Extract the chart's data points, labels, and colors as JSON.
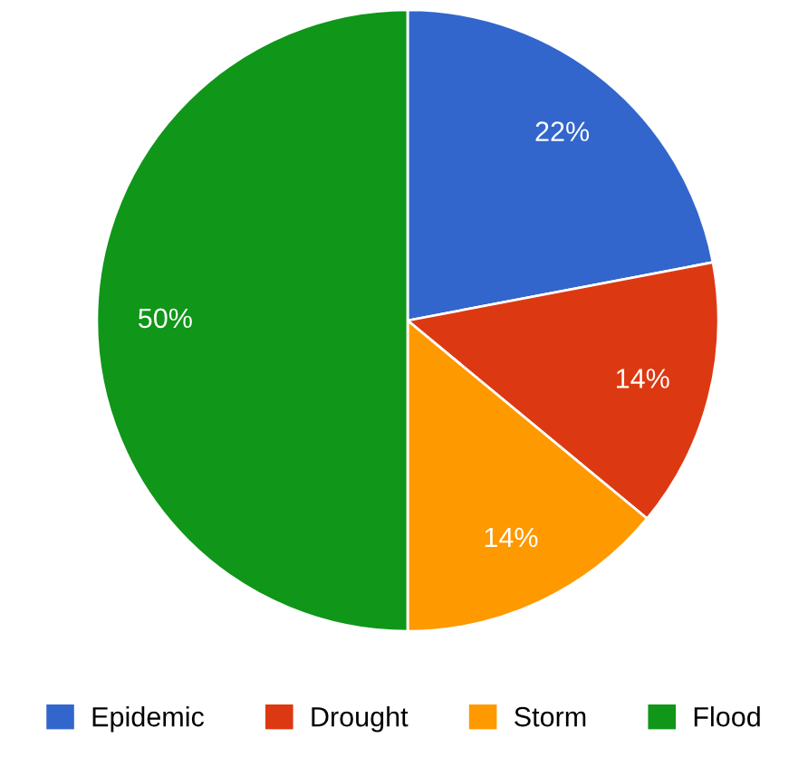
{
  "chart_data": {
    "type": "pie",
    "categories": [
      "Epidemic",
      "Drought",
      "Storm",
      "Flood"
    ],
    "values": [
      22,
      14,
      14,
      50
    ],
    "colors": [
      "#3366cc",
      "#dc3912",
      "#ff9900",
      "#109618"
    ],
    "value_labels": [
      "22%",
      "14%",
      "14%",
      "50%"
    ],
    "legend": "bottom"
  }
}
